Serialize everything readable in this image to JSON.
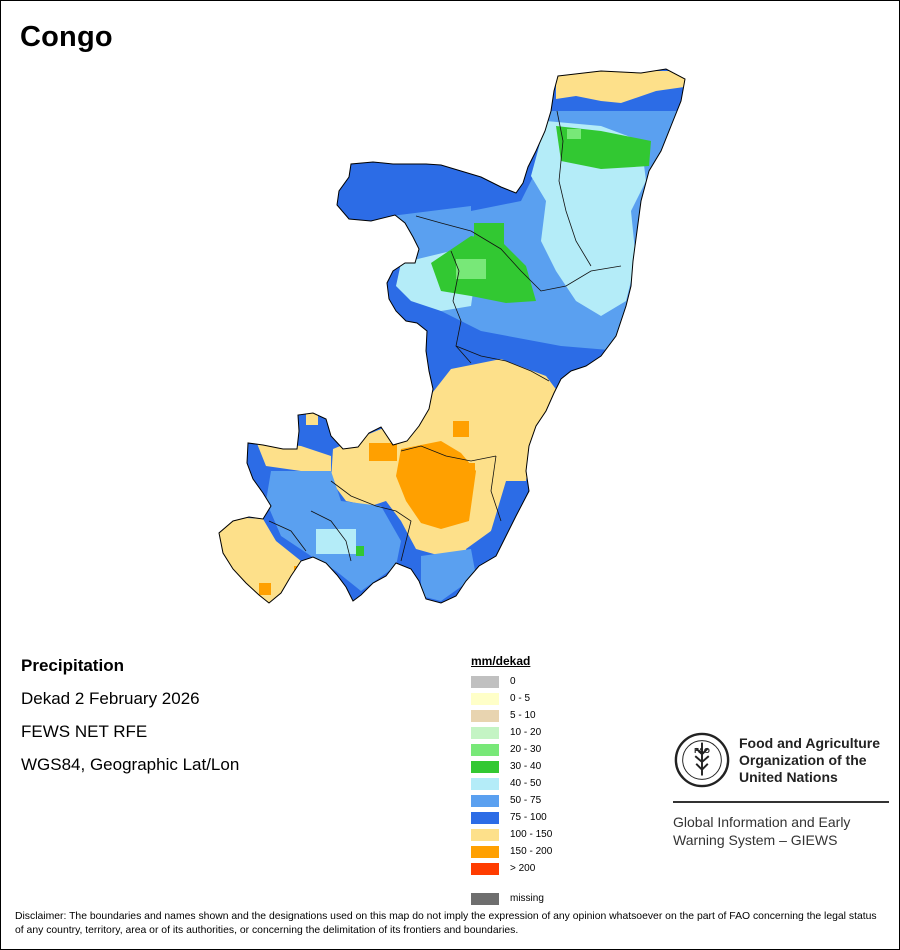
{
  "title": "Congo",
  "info": {
    "heading": "Precipitation",
    "period": "Dekad 2 February 2026",
    "source": "FEWS NET RFE",
    "projection": "WGS84, Geographic Lat/Lon"
  },
  "legend": {
    "unit": "mm/dekad",
    "classes": [
      {
        "label": "0",
        "color": "#c0c0c0"
      },
      {
        "label": "0 - 5",
        "color": "#ffffc8"
      },
      {
        "label": "5 - 10",
        "color": "#e8d4b0"
      },
      {
        "label": "10 - 20",
        "color": "#c4f4c4"
      },
      {
        "label": "20 - 30",
        "color": "#78e878"
      },
      {
        "label": "30 - 40",
        "color": "#32c832"
      },
      {
        "label": "40 - 50",
        "color": "#b4ecf8"
      },
      {
        "label": "50 - 75",
        "color": "#5aa0f0"
      },
      {
        "label": "75 - 100",
        "color": "#2c6ce6"
      },
      {
        "label": "100 - 150",
        "color": "#fde08a"
      },
      {
        "label": "150 - 200",
        "color": "#ffa000"
      },
      {
        "label": "> 200",
        "color": "#ff3c00"
      }
    ],
    "missing": {
      "label": "missing",
      "color": "#6e6e6e"
    }
  },
  "organization": {
    "logo_text": "FAO",
    "logo_motto": "FIAT PANIS",
    "name_lines": [
      "Food and Agriculture",
      "Organization of the",
      "United Nations"
    ],
    "system_lines": [
      "Global Information and Early",
      "Warning System – GIEWS"
    ]
  },
  "disclaimer": "Disclaimer: The boundaries and names shown and the designations used on this map do not imply the expression of any opinion whatsoever on the part of FAO concerning the legal status of any country, territory, area or of its authorities, or concerning the delimitation of its frontiers and boundaries."
}
